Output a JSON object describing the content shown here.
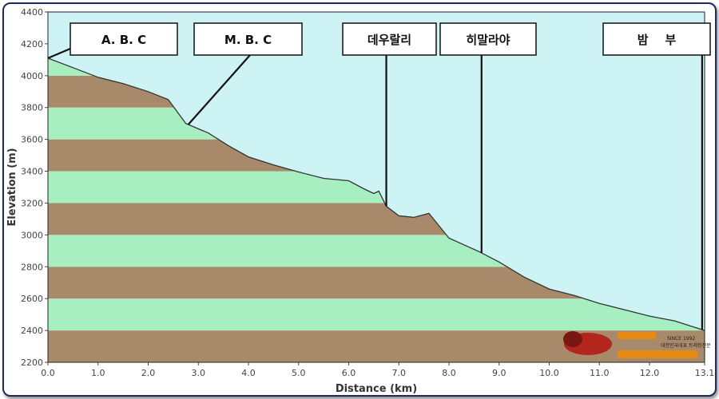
{
  "chart_data": {
    "type": "area",
    "xlabel": "Distance (km)",
    "ylabel": "Elevation (m)",
    "xlim": [
      0,
      13.1
    ],
    "ylim": [
      2200,
      4400
    ],
    "x_ticks": [
      "0.0",
      "1.0",
      "2.0",
      "3.0",
      "4.0",
      "5.0",
      "6.0",
      "7.0",
      "8.0",
      "9.0",
      "10.0",
      "11.0",
      "12.0",
      "13.1"
    ],
    "y_ticks": [
      "2200",
      "2400",
      "2600",
      "2800",
      "3000",
      "3200",
      "3400",
      "3600",
      "3800",
      "4000",
      "4200",
      "4400"
    ],
    "profile": [
      [
        0.0,
        4110
      ],
      [
        0.5,
        4050
      ],
      [
        1.0,
        3990
      ],
      [
        1.5,
        3950
      ],
      [
        2.0,
        3900
      ],
      [
        2.4,
        3850
      ],
      [
        2.75,
        3700
      ],
      [
        3.2,
        3640
      ],
      [
        3.6,
        3560
      ],
      [
        4.0,
        3490
      ],
      [
        4.5,
        3440
      ],
      [
        5.0,
        3395
      ],
      [
        5.5,
        3355
      ],
      [
        6.0,
        3340
      ],
      [
        6.3,
        3290
      ],
      [
        6.5,
        3260
      ],
      [
        6.6,
        3275
      ],
      [
        6.75,
        3180
      ],
      [
        7.0,
        3120
      ],
      [
        7.3,
        3110
      ],
      [
        7.6,
        3135
      ],
      [
        8.0,
        2980
      ],
      [
        8.6,
        2895
      ],
      [
        9.0,
        2830
      ],
      [
        9.5,
        2735
      ],
      [
        10.0,
        2660
      ],
      [
        10.5,
        2620
      ],
      [
        11.0,
        2570
      ],
      [
        11.5,
        2530
      ],
      [
        12.0,
        2490
      ],
      [
        12.5,
        2460
      ],
      [
        13.1,
        2400
      ]
    ],
    "colors": {
      "sky": "#cdf3f5",
      "band_green": "#a7efc1",
      "band_brown": "#a88a6a",
      "line": "#333333"
    },
    "annotations": [
      {
        "text": "A. B. C",
        "x": 0.0
      },
      {
        "text": "M. B. C",
        "x": 2.8
      },
      {
        "text": "데우랄리",
        "x": 6.75
      },
      {
        "text": "히말라야",
        "x": 8.65
      },
      {
        "text": "밤    부",
        "x": 13.05
      }
    ]
  },
  "logo": {
    "since": "SINCE 1992",
    "tagline": "대한민국대표 트레킹전문"
  }
}
